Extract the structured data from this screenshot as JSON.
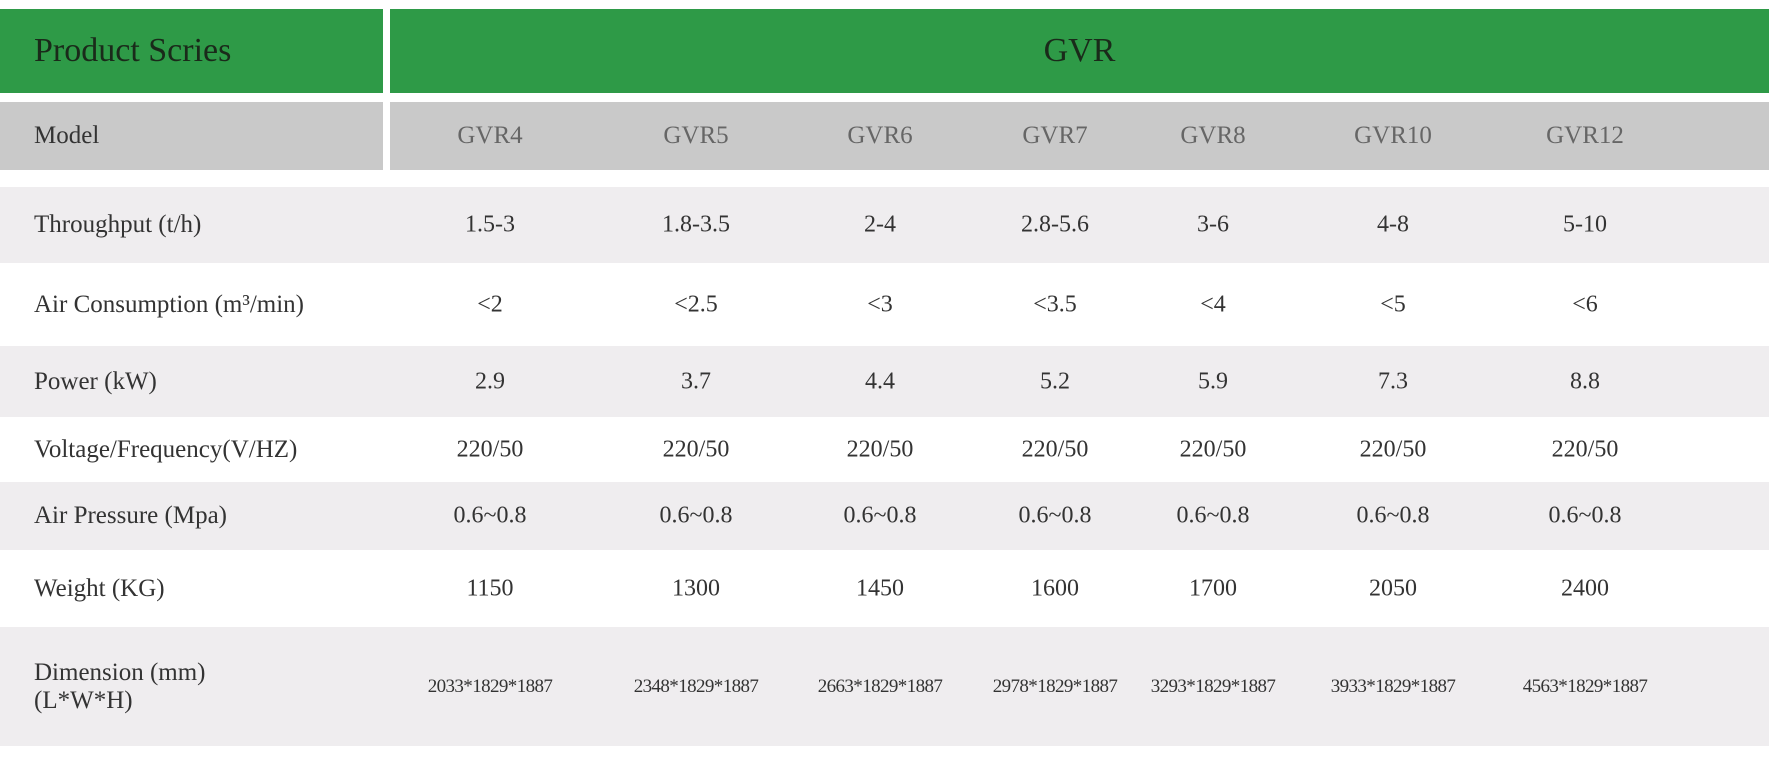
{
  "header": {
    "label": "Product Scries",
    "series": "GVR"
  },
  "model_row": {
    "label": "Model",
    "values": [
      "GVR4",
      "GVR5",
      "GVR6",
      "GVR7",
      "GVR8",
      "GVR10",
      "GVR12"
    ]
  },
  "rows": [
    {
      "label": "Throughput (t/h)",
      "values": [
        "1.5-3",
        "1.8-3.5",
        "2-4",
        "2.8-5.6",
        "3-6",
        "4-8",
        "5-10"
      ]
    },
    {
      "label": "Air Consumption (m³/min)",
      "values": [
        "<2",
        "<2.5",
        "<3",
        "<3.5",
        "<4",
        "<5",
        "<6"
      ]
    },
    {
      "label": "Power (kW)",
      "values": [
        "2.9",
        "3.7",
        "4.4",
        "5.2",
        "5.9",
        "7.3",
        "8.8"
      ]
    },
    {
      "label": "Voltage/Frequency(V/HZ)",
      "values": [
        "220/50",
        "220/50",
        "220/50",
        "220/50",
        "220/50",
        "220/50",
        "220/50"
      ]
    },
    {
      "label": "Air Pressure (Mpa)",
      "values": [
        "0.6~0.8",
        "0.6~0.8",
        "0.6~0.8",
        "0.6~0.8",
        "0.6~0.8",
        "0.6~0.8",
        "0.6~0.8"
      ]
    },
    {
      "label": "Weight (KG)",
      "values": [
        "1150",
        "1300",
        "1450",
        "1600",
        "1700",
        "2050",
        "2400"
      ]
    },
    {
      "label": [
        "Dimension (mm)",
        "(L*W*H)"
      ],
      "values": [
        "2033*1829*1887",
        "2348*1829*1887",
        "2663*1829*1887",
        "2978*1829*1887",
        "3293*1829*1887",
        "3933*1829*1887",
        "4563*1829*1887"
      ]
    }
  ]
}
